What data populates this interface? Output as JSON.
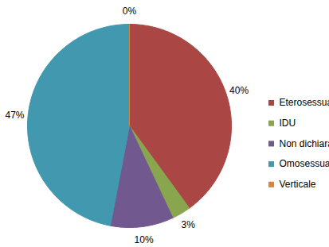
{
  "chart_data": {
    "type": "pie",
    "categories": [
      "Eterosessuale",
      "IDU",
      "Non dichiarati",
      "Omosessuale",
      "Verticale"
    ],
    "values": [
      40,
      3,
      10,
      47,
      0
    ],
    "value_labels": [
      "40%",
      "3%",
      "10%",
      "47%",
      "0%"
    ],
    "colors": [
      "#AA4643",
      "#89A54E",
      "#71588F",
      "#4198AF",
      "#DB843D"
    ],
    "data_labels": true,
    "legend": "right"
  }
}
